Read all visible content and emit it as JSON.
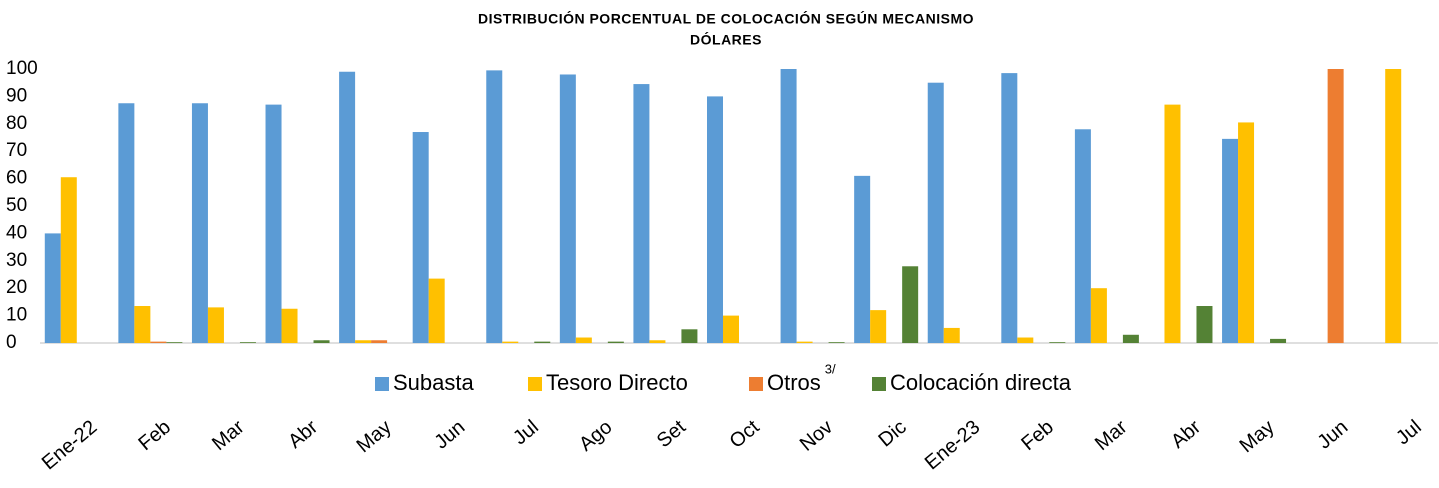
{
  "chart_data": {
    "type": "bar",
    "title": "DISTRIBUCIÓN PORCENTUAL DE COLOCACIÓN SEGÚN MECANISMO",
    "subtitle": "DÓLARES",
    "categories": [
      "Ene-22",
      "Feb",
      "Mar",
      "Abr",
      "May",
      "Jun",
      "Jul",
      "Ago",
      "Set",
      "Oct",
      "Nov",
      "Dic",
      "Ene-23",
      "Feb",
      "Mar",
      "Abr",
      "May",
      "Jun",
      "Jul"
    ],
    "series": [
      {
        "name": "Subasta",
        "color": "#5b9bd5",
        "values": [
          40,
          87.5,
          87.5,
          87,
          99,
          77,
          99.5,
          98,
          94.5,
          90,
          100,
          61,
          95,
          98.5,
          78,
          0,
          74.5,
          0,
          0
        ]
      },
      {
        "name": "Tesoro Directo",
        "color": "#ffc000",
        "values": [
          60.5,
          13.5,
          13,
          12.5,
          1,
          23.5,
          0.5,
          2,
          1,
          10,
          0.5,
          12,
          5.5,
          2,
          20,
          87,
          80.5,
          0,
          100
        ]
      },
      {
        "name": "Otros",
        "note": "3/",
        "color": "#ed7d31",
        "values": [
          0,
          0.5,
          0,
          0,
          1,
          0,
          0,
          0,
          0,
          0,
          0,
          0,
          0,
          0,
          0,
          0,
          0,
          100,
          0
        ]
      },
      {
        "name": "Colocación directa",
        "color": "#548235",
        "values": [
          0,
          0.3,
          0.3,
          1,
          0,
          0,
          0.5,
          0.5,
          5,
          0,
          0.3,
          28,
          0,
          0.3,
          3,
          13.5,
          1.5,
          0,
          0
        ]
      }
    ],
    "ylim": [
      0,
      100
    ],
    "yticks": [
      0,
      10,
      20,
      30,
      40,
      50,
      60,
      70,
      80,
      90,
      100
    ],
    "grid": false,
    "legend": "bottom"
  }
}
